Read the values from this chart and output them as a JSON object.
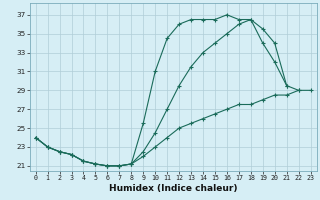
{
  "xlabel": "Humidex (Indice chaleur)",
  "bg_color": "#d6eef5",
  "grid_color": "#b0cdd8",
  "line_color": "#1a6b5a",
  "xlim": [
    -0.5,
    23.5
  ],
  "ylim": [
    20.5,
    38.2
  ],
  "xticks": [
    0,
    1,
    2,
    3,
    4,
    5,
    6,
    7,
    8,
    9,
    10,
    11,
    12,
    13,
    14,
    15,
    16,
    17,
    18,
    19,
    20,
    21,
    22,
    23
  ],
  "yticks": [
    21,
    23,
    25,
    27,
    29,
    31,
    33,
    35,
    37
  ],
  "line1_x": [
    0,
    1,
    2,
    3,
    4,
    5,
    6,
    7,
    8,
    9,
    10,
    11,
    12,
    13,
    14,
    15,
    16,
    17,
    18,
    19,
    20,
    21
  ],
  "line1_y": [
    24.0,
    23.0,
    22.5,
    22.2,
    21.5,
    21.2,
    21.0,
    21.0,
    21.2,
    25.5,
    31.0,
    34.5,
    36.0,
    36.5,
    36.5,
    36.5,
    37.0,
    36.5,
    36.5,
    35.5,
    34.0,
    29.5
  ],
  "line2_x": [
    0,
    1,
    2,
    3,
    4,
    5,
    6,
    7,
    8,
    9,
    10,
    11,
    12,
    13,
    14,
    15,
    16,
    17,
    18,
    19,
    20,
    21,
    22
  ],
  "line2_y": [
    24.0,
    23.0,
    22.5,
    22.2,
    21.5,
    21.2,
    21.0,
    21.0,
    21.2,
    22.5,
    24.5,
    27.0,
    29.5,
    31.5,
    33.0,
    34.0,
    35.0,
    36.0,
    36.5,
    34.0,
    32.0,
    29.5,
    29.0
  ],
  "line3_x": [
    0,
    1,
    2,
    3,
    4,
    5,
    6,
    7,
    8,
    9,
    10,
    11,
    12,
    13,
    14,
    15,
    16,
    17,
    18,
    19,
    20,
    21,
    22,
    23
  ],
  "line3_y": [
    24.0,
    23.0,
    22.5,
    22.2,
    21.5,
    21.2,
    21.0,
    21.0,
    21.2,
    22.0,
    23.0,
    24.0,
    25.0,
    25.5,
    26.0,
    26.5,
    27.0,
    27.5,
    27.5,
    28.0,
    28.5,
    28.5,
    29.0,
    29.0
  ]
}
